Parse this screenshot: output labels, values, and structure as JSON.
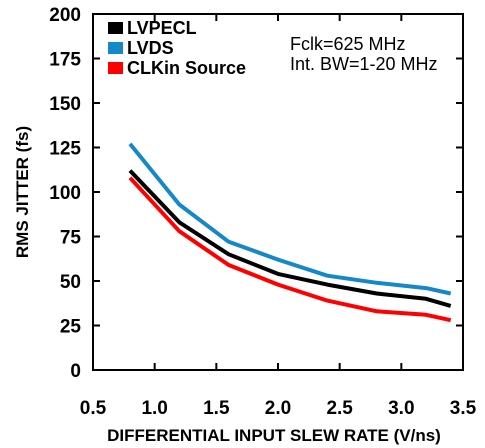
{
  "chart_data": {
    "type": "line",
    "xlabel": "DIFFERENTIAL INPUT SLEW RATE (V/ns)",
    "ylabel": "RMS JITTER (fs)",
    "xlim": [
      0.5,
      3.5
    ],
    "ylim": [
      0,
      200
    ],
    "xticks": [
      "0.5",
      "1.0",
      "1.5",
      "2.0",
      "2.5",
      "3.0",
      "3.5"
    ],
    "yticks": [
      "0",
      "25",
      "50",
      "75",
      "100",
      "125",
      "150",
      "175",
      "200"
    ],
    "grid": false,
    "legend_position": "top-left",
    "annotations": [
      "Fclk=625 MHz",
      "Int. BW=1-20 MHz"
    ],
    "series": [
      {
        "name": "LVPECL",
        "color": "#000000",
        "x": [
          0.8,
          1.2,
          1.6,
          2.0,
          2.4,
          2.8,
          3.2,
          3.4
        ],
        "y": [
          112,
          83,
          65,
          54,
          48,
          43,
          40,
          36
        ]
      },
      {
        "name": "LVDS",
        "color": "#1588c8",
        "x": [
          0.8,
          1.2,
          1.6,
          2.0,
          2.4,
          2.8,
          3.2,
          3.4
        ],
        "y": [
          127,
          93,
          72,
          62,
          53,
          49,
          46,
          43
        ]
      },
      {
        "name": "CLKin Source",
        "color": "#ff0000",
        "x": [
          0.8,
          1.2,
          1.6,
          2.0,
          2.4,
          2.8,
          3.2,
          3.4
        ],
        "y": [
          108,
          78,
          59,
          48,
          39,
          33,
          31,
          28
        ]
      }
    ]
  }
}
